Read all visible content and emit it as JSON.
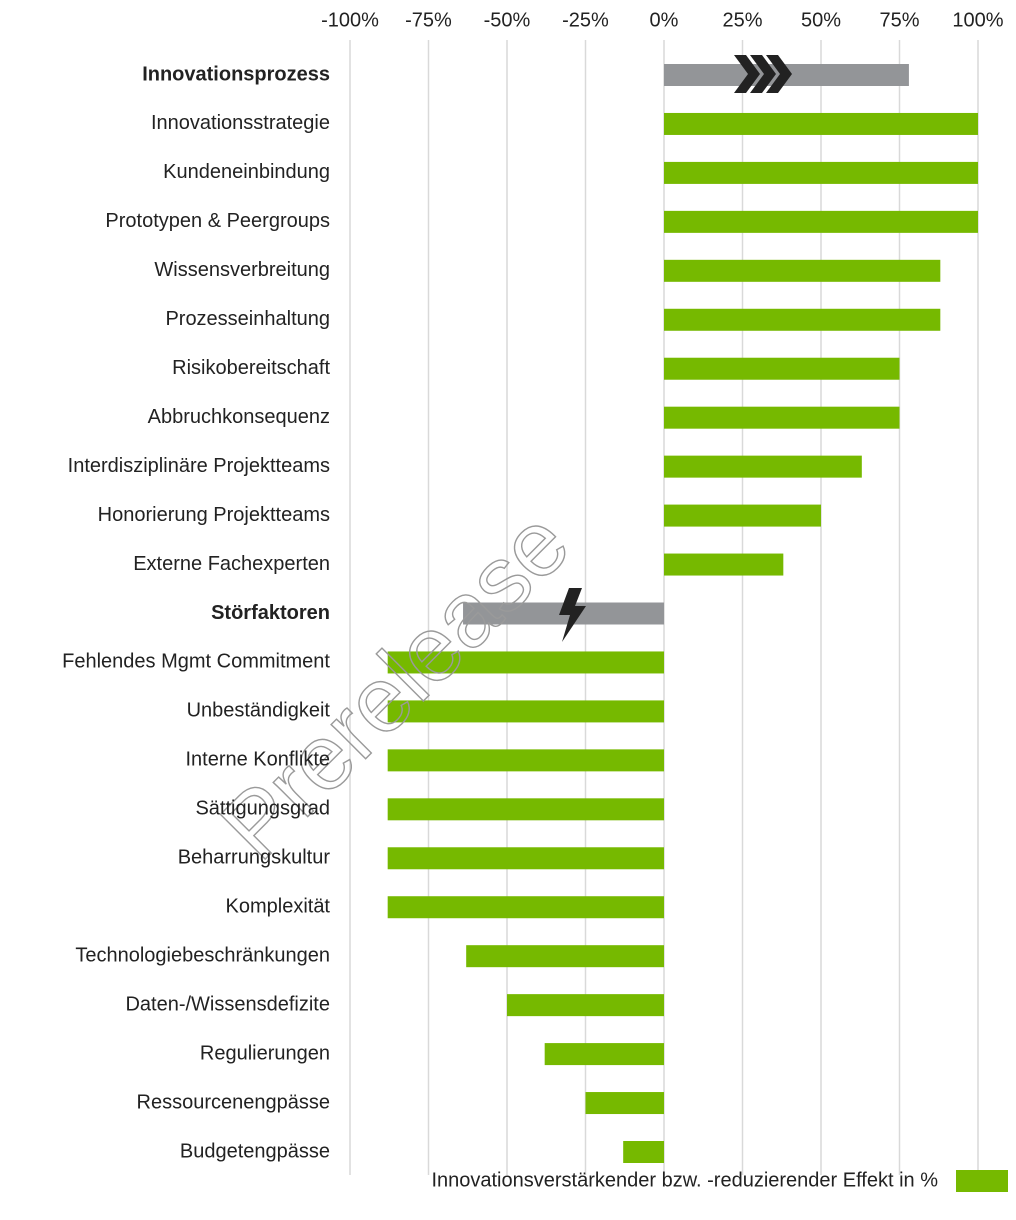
{
  "chart_data": {
    "type": "hbar",
    "categories": [
      "Innovationsprozess",
      "Innovationsstrategie",
      "Kundeneinbindung",
      "Prototypen & Peergroups",
      "Wissensverbreitung",
      "Prozesseinhaltung",
      "Risikobereitschaft",
      "Abbruchkonsequenz",
      "Interdisziplinäre Projektteams",
      "Honorierung Projektteams",
      "Externe Fachexperten",
      "Störfaktoren",
      "Fehlendes Mgmt Commitment",
      "Unbeständigkeit",
      "Interne Konflikte",
      "Sättigungsgrad",
      "Beharrungskultur",
      "Komplexität",
      "Technologiebeschränkungen",
      "Daten-/Wissensdefizite",
      "Regulierungen",
      "Ressourcenengpässe",
      "Budgetengpässe"
    ],
    "series": [
      {
        "name": "Innovationsverstärkender bzw. -reduzierender Effekt in %",
        "color": "#76b900",
        "values": [
          78,
          100,
          100,
          100,
          88,
          88,
          75,
          75,
          63,
          50,
          38,
          -64,
          -88,
          -88,
          -88,
          -88,
          -88,
          -88,
          -63,
          -50,
          -38,
          -25,
          -13
        ]
      }
    ],
    "bar_colors": [
      "#939598",
      "#76b900",
      "#76b900",
      "#76b900",
      "#76b900",
      "#76b900",
      "#76b900",
      "#76b900",
      "#76b900",
      "#76b900",
      "#76b900",
      "#939598",
      "#76b900",
      "#76b900",
      "#76b900",
      "#76b900",
      "#76b900",
      "#76b900",
      "#76b900",
      "#76b900",
      "#76b900",
      "#76b900",
      "#76b900"
    ],
    "bold": [
      true,
      false,
      false,
      false,
      false,
      false,
      false,
      false,
      false,
      false,
      false,
      true,
      false,
      false,
      false,
      false,
      false,
      false,
      false,
      false,
      false,
      false,
      false
    ],
    "xlim": [
      -100,
      100
    ],
    "xticks": [
      {
        "value": -100,
        "label": "-100%"
      },
      {
        "value": -75,
        "label": "-75%"
      },
      {
        "value": -50,
        "label": "-50%"
      },
      {
        "value": -25,
        "label": "-25%"
      },
      {
        "value": 0,
        "label": "0%"
      },
      {
        "value": 25,
        "label": "25%"
      },
      {
        "value": 50,
        "label": "50%"
      },
      {
        "value": 75,
        "label": "75%"
      },
      {
        "value": 100,
        "label": "100%"
      }
    ],
    "grid": true,
    "watermark": "Prerelease"
  }
}
